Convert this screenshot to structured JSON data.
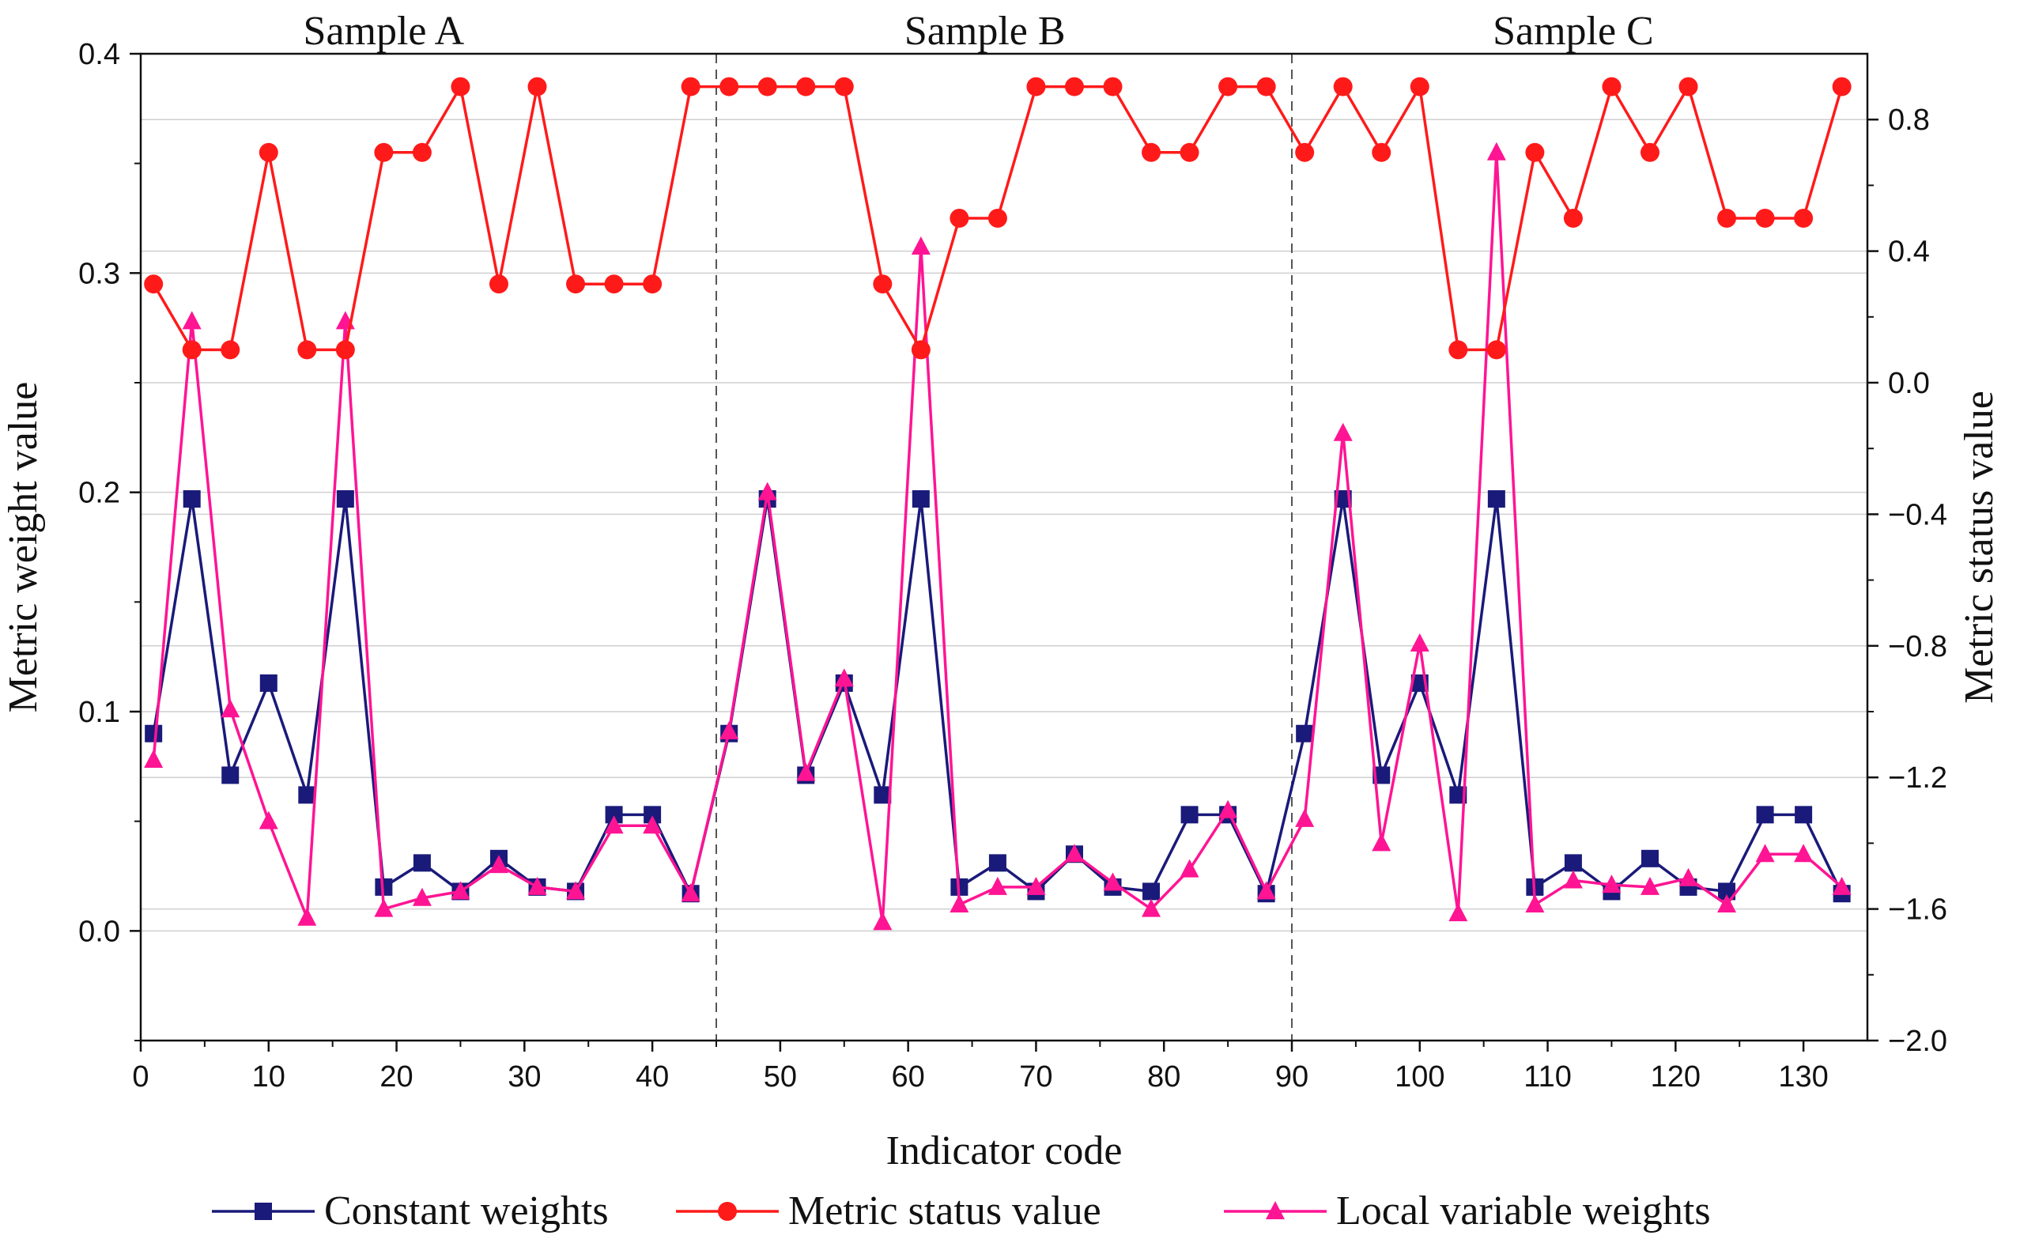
{
  "chart_data": {
    "type": "line",
    "xlabel": "Indicator code",
    "ylabel_left": "Metric weight value",
    "ylabel_right": "Metric status value",
    "xlim": [
      0,
      135
    ],
    "ylim_left": [
      -0.05,
      0.4
    ],
    "ylim_right": [
      -2.0,
      1.0
    ],
    "x_ticks": [
      0,
      10,
      20,
      30,
      40,
      50,
      60,
      70,
      80,
      90,
      100,
      110,
      120,
      130
    ],
    "y_ticks_left": [
      "0.0",
      "0.1",
      "0.2",
      "0.3",
      "0.4"
    ],
    "y_ticks_left_values": [
      0.0,
      0.1,
      0.2,
      0.3,
      0.4
    ],
    "y_ticks_right": [
      "−2.0",
      "−1.6",
      "−1.2",
      "−0.8",
      "−0.4",
      "0.0",
      "0.4",
      "0.8"
    ],
    "y_ticks_right_values": [
      -2.0,
      -1.6,
      -1.2,
      -0.8,
      -0.4,
      0.0,
      0.4,
      0.8
    ],
    "grid": "horizontal",
    "legend_position": "bottom",
    "sample_dividers": [
      45,
      90
    ],
    "sample_labels": [
      {
        "text": "Sample A",
        "x": 19
      },
      {
        "text": "Sample B",
        "x": 66
      },
      {
        "text": "Sample C",
        "x": 112
      }
    ],
    "x": [
      1,
      4,
      7,
      10,
      13,
      16,
      19,
      22,
      25,
      28,
      31,
      34,
      37,
      40,
      43,
      46,
      49,
      52,
      55,
      58,
      61,
      64,
      67,
      70,
      73,
      76,
      79,
      82,
      85,
      88,
      91,
      94,
      97,
      100,
      103,
      106,
      109,
      112,
      115,
      118,
      121,
      124,
      127,
      130,
      133
    ],
    "series": [
      {
        "name": "Constant weights",
        "axis": "left",
        "color": "#1a1a7a",
        "marker": "square",
        "values": [
          0.09,
          0.197,
          0.071,
          0.113,
          0.062,
          0.197,
          0.02,
          0.031,
          0.018,
          0.033,
          0.02,
          0.018,
          0.053,
          0.053,
          0.017,
          0.09,
          0.197,
          0.071,
          0.113,
          0.062,
          0.197,
          0.02,
          0.031,
          0.018,
          0.035,
          0.02,
          0.018,
          0.053,
          0.053,
          0.017,
          0.09,
          0.197,
          0.071,
          0.113,
          0.062,
          0.197,
          0.02,
          0.031,
          0.018,
          0.033,
          0.02,
          0.018,
          0.053,
          0.053,
          0.017
        ]
      },
      {
        "name": "Metric status value",
        "axis": "right",
        "color": "#ff1a1a",
        "marker": "circle",
        "values": [
          0.3,
          0.1,
          0.1,
          0.7,
          0.1,
          0.1,
          0.7,
          0.7,
          0.9,
          0.3,
          0.9,
          0.3,
          0.3,
          0.3,
          0.9,
          0.9,
          0.9,
          0.9,
          0.9,
          0.3,
          0.1,
          0.5,
          0.5,
          0.9,
          0.9,
          0.9,
          0.7,
          0.7,
          0.9,
          0.9,
          0.7,
          0.9,
          0.7,
          0.9,
          0.1,
          0.1,
          0.7,
          0.5,
          0.9,
          0.7,
          0.9,
          0.5,
          0.5,
          0.5,
          0.9
        ]
      },
      {
        "name": "Local variable weights",
        "axis": "left",
        "color": "#ff1493",
        "marker": "triangle",
        "values": [
          0.078,
          0.278,
          0.101,
          0.05,
          0.006,
          0.278,
          0.01,
          0.015,
          0.018,
          0.03,
          0.02,
          0.018,
          0.048,
          0.048,
          0.017,
          0.091,
          0.2,
          0.072,
          0.115,
          0.004,
          0.312,
          0.012,
          0.02,
          0.02,
          0.035,
          0.022,
          0.01,
          0.028,
          0.055,
          0.018,
          0.051,
          0.227,
          0.04,
          0.131,
          0.008,
          0.355,
          0.012,
          0.023,
          0.021,
          0.02,
          0.024,
          0.012,
          0.035,
          0.035,
          0.02
        ]
      }
    ]
  }
}
